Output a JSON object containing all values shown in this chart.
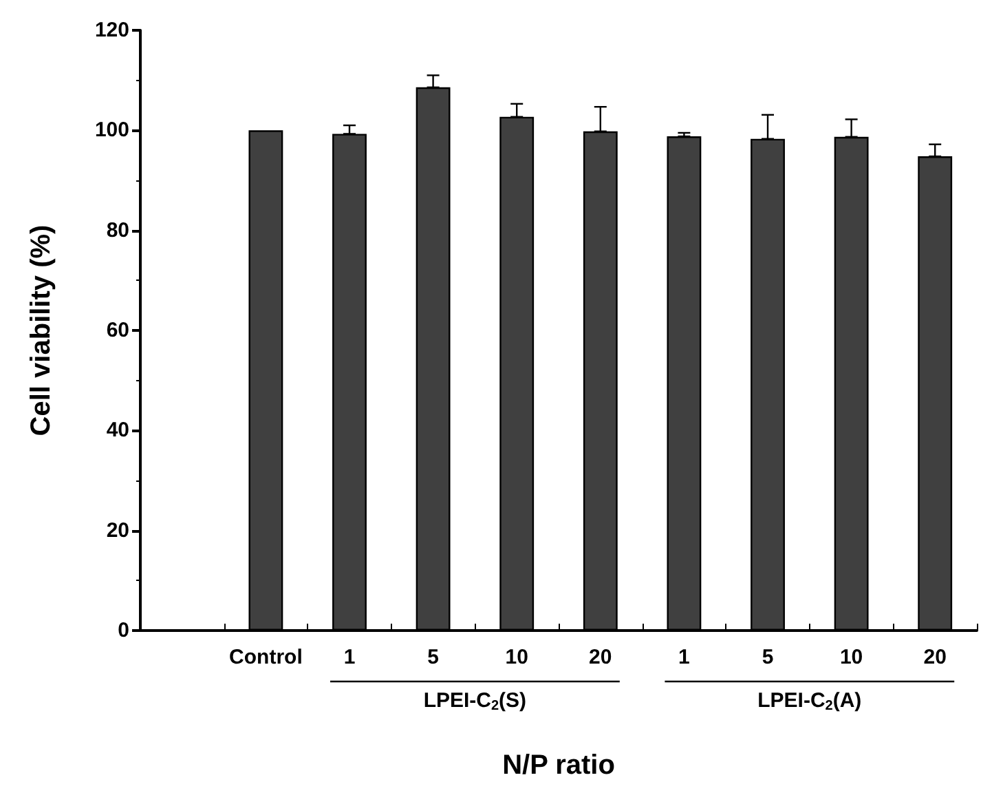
{
  "chart_data": {
    "type": "bar",
    "xlabel": "N/P ratio",
    "ylabel": "Cell viability (%)",
    "categories": [
      "Control",
      "1",
      "5",
      "10",
      "20",
      "1",
      "5",
      "10",
      "20"
    ],
    "values": [
      100,
      99.3,
      108.6,
      102.7,
      99.8,
      98.8,
      98.3,
      98.7,
      94.8
    ],
    "errors": [
      null,
      [
        99.3,
        101.0
      ],
      [
        108.6,
        111.0
      ],
      [
        102.7,
        105.3
      ],
      [
        99.8,
        104.7
      ],
      [
        98.8,
        99.5
      ],
      [
        98.3,
        103.1
      ],
      [
        98.7,
        102.2
      ],
      [
        94.8,
        97.2
      ]
    ],
    "color": "#404040",
    "ylim": [
      0,
      120
    ],
    "yticks": [
      0,
      20,
      40,
      60,
      80,
      100,
      120
    ],
    "annotations": [
      "LPEI-C$_{2}$(S)",
      "LPEI-C$_{2}$(A)"
    ],
    "grid": false
  }
}
